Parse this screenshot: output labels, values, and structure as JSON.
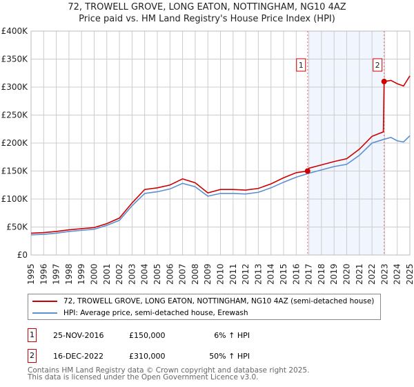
{
  "title_line1": "72, TROWELL GROVE, LONG EATON, NOTTINGHAM, NG10 4AZ",
  "title_line2": "Price paid vs. HM Land Registry's House Price Index (HPI)",
  "chart_data": {
    "type": "line",
    "xlim": [
      1995,
      2025
    ],
    "ylim": [
      0,
      400000
    ],
    "y_ticks": [
      {
        "v": 0,
        "label": "£0"
      },
      {
        "v": 50000,
        "label": "£50K"
      },
      {
        "v": 100000,
        "label": "£100K"
      },
      {
        "v": 150000,
        "label": "£150K"
      },
      {
        "v": 200000,
        "label": "£200K"
      },
      {
        "v": 250000,
        "label": "£250K"
      },
      {
        "v": 300000,
        "label": "£300K"
      },
      {
        "v": 350000,
        "label": "£350K"
      },
      {
        "v": 400000,
        "label": "£400K"
      }
    ],
    "x_ticks": [
      "1995",
      "1996",
      "1997",
      "1998",
      "1999",
      "2000",
      "2001",
      "2002",
      "2003",
      "2004",
      "2005",
      "2006",
      "2007",
      "2008",
      "2009",
      "2010",
      "2011",
      "2012",
      "2013",
      "2014",
      "2015",
      "2016",
      "2017",
      "2018",
      "2019",
      "2020",
      "2021",
      "2022",
      "2023",
      "2024",
      "2025"
    ],
    "grid": true,
    "series": [
      {
        "name": "72, TROWELL GROVE, LONG EATON, NOTTINGHAM, NG10 4AZ (semi-detached house)",
        "color": "#cc0000",
        "x": [
          1995,
          1996,
          1997,
          1998,
          1999,
          2000,
          2001,
          2002,
          2003,
          2004,
          2005,
          2006,
          2007,
          2008,
          2009,
          2010,
          2011,
          2012,
          2013,
          2014,
          2015,
          2016,
          2016.9,
          2017,
          2018,
          2019,
          2020,
          2021,
          2022,
          2022.9,
          2022.96,
          2023,
          2023.5,
          2024,
          2024.5,
          2025
        ],
        "y": [
          39000,
          40000,
          42000,
          45000,
          47000,
          49000,
          56000,
          66000,
          93000,
          117000,
          120000,
          125000,
          136000,
          129000,
          111000,
          117000,
          117000,
          116000,
          119000,
          127000,
          138000,
          147000,
          150000,
          155000,
          161000,
          167000,
          172000,
          189000,
          212000,
          220000,
          310000,
          310000,
          312000,
          306000,
          302000,
          320000
        ]
      },
      {
        "name": "HPI: Average price, semi-detached house, Erewash",
        "color": "#5b8fd0",
        "x": [
          1995,
          1996,
          1997,
          1998,
          1999,
          2000,
          2001,
          2002,
          2003,
          2004,
          2005,
          2006,
          2007,
          2008,
          2009,
          2010,
          2011,
          2012,
          2013,
          2014,
          2015,
          2016,
          2017,
          2018,
          2019,
          2020,
          2021,
          2022,
          2023,
          2023.5,
          2024,
          2024.5,
          2025
        ],
        "y": [
          36000,
          37000,
          39000,
          42000,
          44000,
          46000,
          53000,
          62000,
          88000,
          110000,
          113000,
          118000,
          128000,
          122000,
          105000,
          110000,
          110000,
          109000,
          112000,
          120000,
          130000,
          139000,
          146000,
          152000,
          158000,
          162000,
          178000,
          200000,
          207000,
          210000,
          204000,
          202000,
          213000
        ]
      }
    ],
    "shaded_range": [
      2016.9,
      2022.96
    ],
    "sales": [
      {
        "label": "1",
        "date": "25-NOV-2016",
        "x": 2016.9,
        "price": 150000,
        "price_text": "£150,000",
        "hpi_text": "6% ↑ HPI"
      },
      {
        "label": "2",
        "date": "16-DEC-2022",
        "x": 2022.96,
        "price": 310000,
        "price_text": "£310,000",
        "hpi_text": "50% ↑ HPI"
      }
    ]
  },
  "footer_line1": "Contains HM Land Registry data © Crown copyright and database right 2025.",
  "footer_line2": "This data is licensed under the Open Government Licence v3.0."
}
